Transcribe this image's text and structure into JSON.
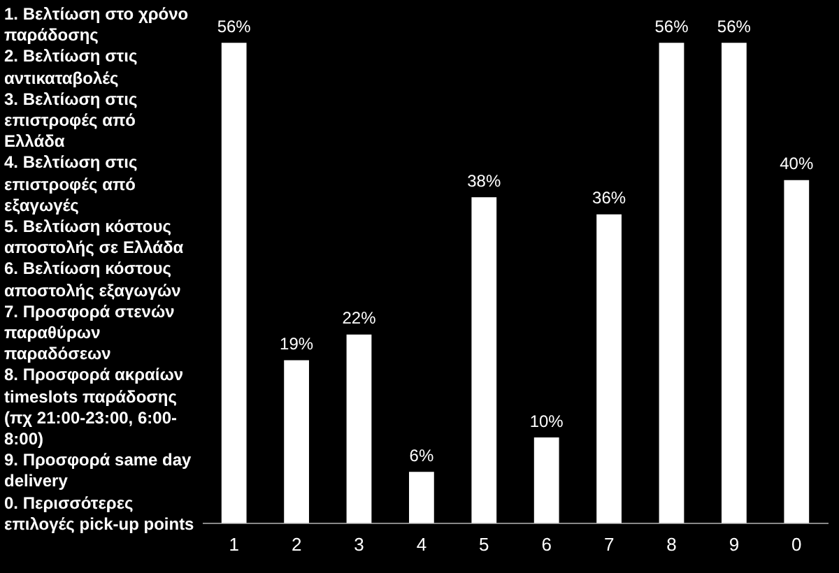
{
  "chart_data": {
    "type": "bar",
    "categories": [
      "1",
      "2",
      "3",
      "4",
      "5",
      "6",
      "7",
      "8",
      "9",
      "0"
    ],
    "values": [
      56,
      19,
      22,
      6,
      38,
      10,
      36,
      56,
      56,
      40
    ],
    "value_labels": [
      "56%",
      "19%",
      "22%",
      "6%",
      "38%",
      "10%",
      "36%",
      "56%",
      "56%",
      "40%"
    ],
    "color": "#ffffff",
    "grid": false,
    "legend": false,
    "annotations": [
      "1. Βελτίωση στο χρόνο παράδοσης",
      "2. Βελτίωση στις αντικαταβολές",
      "3. Βελτίωση στις επιστροφές από Ελλάδα",
      "4. Βελτίωση στις επιστροφές από εξαγωγές",
      "5. Βελτίωση κόστους αποστολής σε Ελλάδα",
      "6. Βελτίωση κόστους αποστολής εξαγωγών",
      "7. Προσφορά στενών παραθύρων παραδόσεων",
      "8. Προσφορά ακραίων timeslots παράδοσης (πχ 21:00-23:00, 6:00-8:00)",
      "9. Προσφορά same day delivery",
      "0. Περισσότερες επιλογές pick-up points"
    ]
  }
}
